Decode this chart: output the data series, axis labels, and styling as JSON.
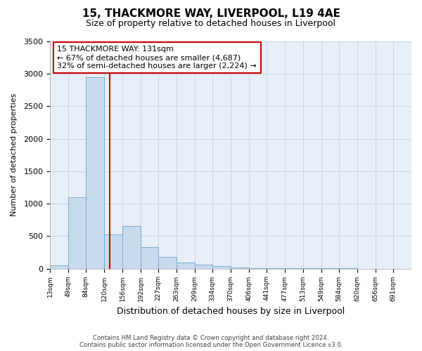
{
  "title": "15, THACKMORE WAY, LIVERPOOL, L19 4AE",
  "subtitle": "Size of property relative to detached houses in Liverpool",
  "xlabel": "Distribution of detached houses by size in Liverpool",
  "ylabel": "Number of detached properties",
  "footer_line1": "Contains HM Land Registry data © Crown copyright and database right 2024.",
  "footer_line2": "Contains public sector information licensed under the Open Government Licence v3.0.",
  "property_line": 131,
  "property_label": "15 THACKMORE WAY: 131sqm",
  "annotation_line1": "← 67% of detached houses are smaller (4,687)",
  "annotation_line2": "32% of semi-detached houses are larger (2,224) →",
  "bar_edges": [
    13,
    49,
    84,
    120,
    156,
    192,
    227,
    263,
    299,
    334,
    370,
    406,
    441,
    477,
    513,
    549,
    584,
    620,
    656,
    691,
    727
  ],
  "bar_heights": [
    50,
    1100,
    2950,
    530,
    660,
    330,
    175,
    90,
    60,
    35,
    20,
    10,
    5,
    3,
    2,
    1,
    1,
    0,
    0,
    0
  ],
  "bar_color": "#c8daee",
  "bar_edge_color": "#7aaed0",
  "red_line_color": "#cc0000",
  "annotation_box_color": "#cc0000",
  "plot_bg_color": "#e8eef8",
  "background_color": "#ffffff",
  "grid_color": "#c8d4e8",
  "ylim": [
    0,
    3500
  ],
  "yticks": [
    0,
    500,
    1000,
    1500,
    2000,
    2500,
    3000,
    3500
  ]
}
